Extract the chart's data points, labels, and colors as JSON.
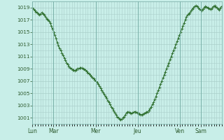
{
  "background_color": "#c8eee8",
  "plot_bg_color": "#c8eee8",
  "line_color": "#2d6e2d",
  "marker_color": "#2d6e2d",
  "grid_color": "#aacfca",
  "tick_label_color": "#2d5a2d",
  "ylim": [
    1000,
    1020
  ],
  "yticks": [
    1001,
    1003,
    1005,
    1007,
    1009,
    1011,
    1013,
    1015,
    1017,
    1019
  ],
  "day_labels": [
    "Lun",
    "Mar",
    "Mer",
    "Jeu",
    "Ven",
    "Sam"
  ],
  "day_positions": [
    0,
    24,
    72,
    120,
    168,
    192
  ],
  "xlim": [
    0,
    216
  ],
  "pressure_values": [
    1019.0,
    1018.8,
    1018.5,
    1018.3,
    1018.2,
    1018.0,
    1017.8,
    1018.0,
    1018.2,
    1018.0,
    1017.8,
    1017.5,
    1017.2,
    1017.0,
    1016.8,
    1016.5,
    1016.0,
    1015.5,
    1015.0,
    1014.5,
    1014.0,
    1013.3,
    1012.8,
    1012.3,
    1012.0,
    1011.6,
    1011.2,
    1010.8,
    1010.4,
    1010.0,
    1009.7,
    1009.4,
    1009.2,
    1009.0,
    1008.8,
    1008.8,
    1008.7,
    1008.8,
    1009.0,
    1009.0,
    1009.1,
    1009.2,
    1009.1,
    1009.0,
    1008.9,
    1008.8,
    1008.6,
    1008.4,
    1008.2,
    1008.0,
    1007.8,
    1007.6,
    1007.4,
    1007.2,
    1007.0,
    1006.8,
    1006.5,
    1006.2,
    1005.8,
    1005.5,
    1005.2,
    1004.8,
    1004.5,
    1004.2,
    1003.8,
    1003.5,
    1003.2,
    1002.8,
    1002.5,
    1002.2,
    1001.8,
    1001.5,
    1001.2,
    1001.0,
    1000.8,
    1000.7,
    1000.8,
    1001.0,
    1001.2,
    1001.5,
    1001.8,
    1002.0,
    1001.9,
    1001.8,
    1001.7,
    1001.8,
    1001.9,
    1002.0,
    1001.9,
    1001.8,
    1001.7,
    1001.6,
    1001.5,
    1001.5,
    1001.6,
    1001.7,
    1001.8,
    1001.9,
    1002.0,
    1002.2,
    1002.5,
    1002.8,
    1003.2,
    1003.5,
    1004.0,
    1004.5,
    1005.0,
    1005.5,
    1006.0,
    1006.5,
    1007.0,
    1007.5,
    1008.0,
    1008.5,
    1009.0,
    1009.5,
    1010.0,
    1010.5,
    1011.0,
    1011.5,
    1012.0,
    1012.5,
    1013.0,
    1013.5,
    1014.0,
    1014.5,
    1015.0,
    1015.5,
    1016.0,
    1016.5,
    1017.0,
    1017.5,
    1017.8,
    1018.0,
    1018.2,
    1018.5,
    1018.8,
    1019.0,
    1019.2,
    1019.3,
    1019.2,
    1019.0,
    1018.8,
    1018.6,
    1018.5,
    1018.8,
    1019.0,
    1019.2,
    1019.1,
    1019.0,
    1018.9,
    1018.8,
    1018.7,
    1019.0,
    1019.2,
    1019.3,
    1019.1,
    1019.0,
    1018.8,
    1018.6,
    1019.0,
    1019.2
  ]
}
